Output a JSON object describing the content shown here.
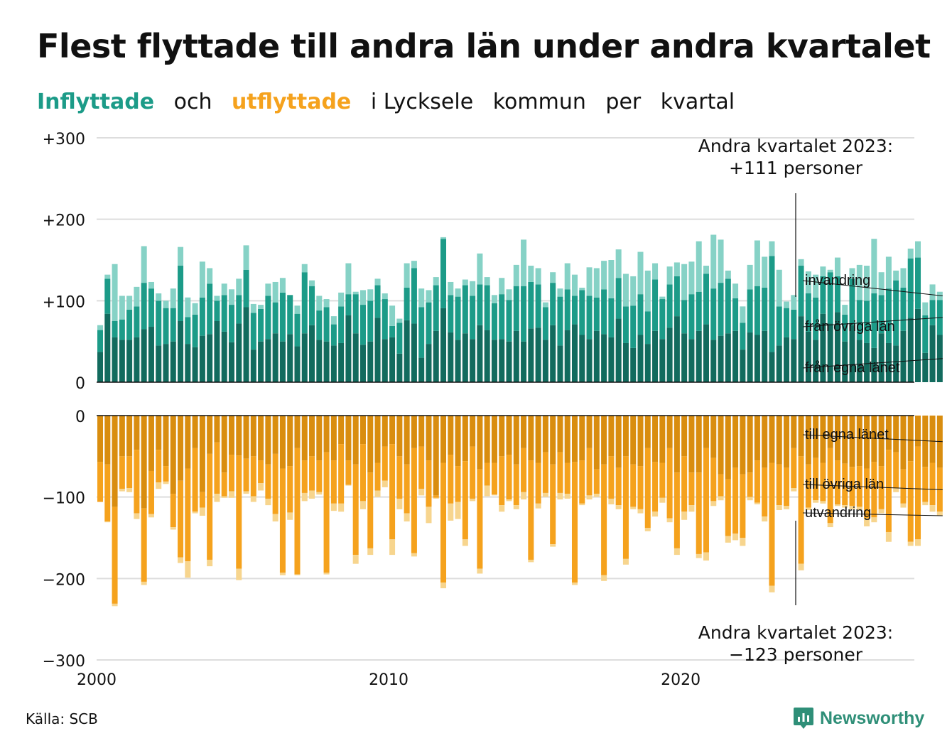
{
  "title": "Flest flyttade till andra län under andra kvartalet",
  "subtitle": {
    "part1": "Inflyttade",
    "part2": "och",
    "part3": "utflyttade",
    "part4": "i Lycksele",
    "part5": "kommun",
    "part6": "per",
    "part7": "kvartal"
  },
  "source": "Källa: SCB",
  "brand": "Newsworthy",
  "colors": {
    "in_own": "#126b5e",
    "in_other": "#1c9b88",
    "in_immig": "#86d2c6",
    "out_own": "#d98d0f",
    "out_other": "#f5a21d",
    "out_emig": "#f7d58e",
    "grid": "#dddddd",
    "brand": "#2f8f78"
  },
  "chart_data": {
    "type": "bar",
    "stacked": true,
    "x_unit": "quarter",
    "x_start": "2000 Q1",
    "xlim": [
      2000,
      2028
    ],
    "x_ticks": [
      "2000",
      "2010",
      "2020"
    ],
    "grid": true,
    "panels": [
      {
        "name": "in",
        "ylim": [
          0,
          300
        ],
        "y_ticks": [
          "0",
          "+100",
          "+200",
          "+300"
        ],
        "series": [
          {
            "name": "från egna länet",
            "values": [
              37,
              84,
              55,
              52,
              52,
              55,
              65,
              68,
              45,
              47,
              50,
              75,
              47,
              43,
              57,
              59,
              75,
              62,
              49,
              72,
              92,
              40,
              50,
              53,
              60,
              50,
              59,
              44,
              60,
              70,
              52,
              50,
              45,
              48,
              82,
              60,
              46,
              50,
              79,
              53,
              55,
              35,
              76,
              72,
              30,
              47,
              63,
              91,
              61,
              52,
              60,
              53,
              70,
              64,
              52,
              53,
              50,
              63,
              50,
              66,
              67,
              52,
              70,
              45,
              64,
              71,
              58,
              53,
              63,
              59,
              55,
              78,
              48,
              42,
              58,
              47,
              63,
              53,
              67,
              81,
              60,
              53,
              63,
              71,
              52,
              57,
              60,
              63,
              40,
              61,
              58,
              63,
              37,
              45,
              55,
              53,
              81,
              62,
              52,
              84,
              72,
              86,
              50,
              70,
              52,
              48,
              42,
              60,
              48,
              45,
              63,
              79,
              90,
              36,
              70,
              58
            ],
            "estimated": true
          },
          {
            "name": "från övriga län",
            "values": [
              27,
              43,
              20,
              25,
              37,
              38,
              57,
              47,
              55,
              44,
              41,
              68,
              33,
              40,
              47,
              62,
              25,
              45,
              46,
              35,
              46,
              45,
              40,
              53,
              38,
              60,
              48,
              40,
              75,
              48,
              36,
              42,
              26,
              45,
              26,
              48,
              49,
              50,
              40,
              49,
              14,
              38,
              40,
              68,
              62,
              51,
              56,
              85,
              46,
              53,
              59,
              53,
              50,
              55,
              45,
              55,
              51,
              55,
              68,
              57,
              53,
              40,
              52,
              60,
              50,
              35,
              55,
              53,
              41,
              55,
              48,
              50,
              45,
              52,
              50,
              40,
              63,
              49,
              53,
              49,
              41,
              55,
              48,
              62,
              63,
              65,
              67,
              40,
              33,
              53,
              60,
              53,
              118,
              48,
              36,
              36,
              62,
              47,
              52,
              46,
              63,
              44,
              33,
              57,
              49,
              52,
              67,
              47,
              67,
              80,
              53,
              73,
              63,
              46,
              31,
              43
            ],
            "estimated": true
          },
          {
            "name": "invandring",
            "values": [
              6,
              5,
              70,
              29,
              17,
              24,
              45,
              8,
              9,
              9,
              24,
              23,
              24,
              14,
              44,
              19,
              6,
              14,
              19,
              20,
              30,
              11,
              5,
              15,
              25,
              18,
              0,
              10,
              10,
              7,
              18,
              10,
              10,
              17,
              38,
              3,
              18,
              14,
              8,
              7,
              25,
              5,
              30,
              9,
              23,
              15,
              10,
              2,
              16,
              10,
              7,
              18,
              38,
              10,
              10,
              20,
              13,
              26,
              57,
              20,
              20,
              6,
              13,
              10,
              32,
              26,
              3,
              35,
              36,
              35,
              47,
              35,
              40,
              36,
              52,
              50,
              20,
              3,
              22,
              17,
              44,
              40,
              62,
              10,
              66,
              53,
              10,
              18,
              20,
              30,
              56,
              38,
              18,
              45,
              8,
              18,
              8,
              27,
              28,
              12,
              3,
              23,
              12,
              13,
              43,
              43,
              67,
              28,
              39,
              12,
              24,
              12,
              20,
              16,
              19,
              10
            ],
            "estimated": true
          }
        ]
      },
      {
        "name": "out",
        "ylim": [
          -300,
          0
        ],
        "y_ticks": [
          "0",
          "−100",
          "−200",
          "−300"
        ],
        "series": [
          {
            "name": "till egna länet",
            "values": [
              -57,
              -60,
              -112,
              -50,
              -50,
              -42,
              -114,
              -68,
              -42,
              -62,
              -96,
              -80,
              -65,
              -40,
              -94,
              -47,
              -33,
              -70,
              -48,
              -49,
              -53,
              -50,
              -55,
              -60,
              -47,
              -65,
              -62,
              -40,
              -55,
              -50,
              -55,
              -45,
              -55,
              -35,
              -55,
              -60,
              -35,
              -70,
              -58,
              -38,
              -35,
              -50,
              -60,
              -40,
              -38,
              -55,
              -98,
              -58,
              -48,
              -62,
              -56,
              -38,
              -66,
              -58,
              -58,
              -50,
              -48,
              -60,
              -40,
              -55,
              -58,
              -45,
              -60,
              -45,
              -58,
              -57,
              -55,
              -40,
              -66,
              -60,
              -50,
              -64,
              -50,
              -60,
              -62,
              -40,
              -57,
              -58,
              -40,
              -70,
              -50,
              -70,
              -70,
              -40,
              -52,
              -72,
              -78,
              -64,
              -72,
              -70,
              -55,
              -64,
              -58,
              -60,
              -64,
              -40,
              -50,
              -60,
              -52,
              -58,
              -40,
              -55,
              -59,
              -63,
              -62,
              -65,
              -57,
              -62,
              -42,
              -45,
              -66,
              -56,
              -38,
              -63,
              -58,
              -64
            ],
            "estimated": true
          },
          {
            "name": "till övriga län",
            "values": [
              -49,
              -70,
              -119,
              -40,
              -39,
              -78,
              -90,
              -53,
              -40,
              -19,
              -41,
              -94,
              -114,
              -78,
              -19,
              -130,
              -63,
              -29,
              -45,
              -139,
              -40,
              -49,
              -28,
              -42,
              -74,
              -128,
              -57,
              -155,
              -40,
              -42,
              -39,
              -148,
              -53,
              -73,
              -30,
              -111,
              -70,
              -93,
              -34,
              -42,
              -117,
              -52,
              -60,
              -129,
              -52,
              -57,
              -3,
              -147,
              -60,
              -44,
              -96,
              -64,
              -122,
              -28,
              -39,
              -60,
              -55,
              -50,
              -54,
              -122,
              -50,
              -50,
              -98,
              -50,
              -38,
              -148,
              -53,
              -58,
              -30,
              -136,
              -52,
              -46,
              -126,
              -52,
              -53,
              -98,
              -61,
              -43,
              -86,
              -93,
              -68,
              -40,
              -100,
              -128,
              -53,
              -27,
              -70,
              -81,
              -78,
              -30,
              -52,
              -60,
              -151,
              -50,
              -47,
              -49,
              -132,
              -53,
              -52,
              -47,
              -92,
              -54,
              -51,
              -48,
              -50,
              -61,
              -68,
              -53,
              -101,
              -44,
              -42,
              -99,
              -114,
              -43,
              -52,
              -54
            ],
            "estimated": true
          },
          {
            "name": "utvandring",
            "values": [
              0,
              -1,
              -3,
              -3,
              -5,
              -7,
              -4,
              -4,
              -8,
              -3,
              -3,
              -7,
              -20,
              -2,
              -10,
              -8,
              -10,
              -2,
              -8,
              -14,
              -3,
              -7,
              -9,
              -8,
              -9,
              -3,
              -9,
              -1,
              -10,
              -10,
              -3,
              -2,
              -9,
              -10,
              -1,
              -11,
              -10,
              -8,
              -8,
              -8,
              -19,
              -13,
              -10,
              -4,
              -8,
              -20,
              -1,
              -7,
              -21,
              -21,
              -8,
              -3,
              -6,
              -13,
              -1,
              -8,
              -2,
              -5,
              -9,
              -3,
              -6,
              -5,
              -3,
              -8,
              -6,
              -3,
              -2,
              -5,
              -4,
              -7,
              -7,
              -5,
              -7,
              -3,
              -5,
              -4,
              -6,
              -6,
              -5,
              -8,
              -10,
              -8,
              -5,
              -10,
              -6,
              -5,
              -8,
              -8,
              -10,
              -4,
              -2,
              -6,
              -8,
              -6,
              -4,
              -4,
              -8,
              -3,
              -3,
              -3,
              -5,
              -2,
              -3,
              -4,
              -4,
              -10,
              -6,
              -5,
              -12,
              -5,
              -5,
              -5,
              -8,
              -4,
              -8,
              -5
            ],
            "estimated": true
          }
        ]
      }
    ],
    "annotations": [
      {
        "panel": "in",
        "line1": "Andra kvartalet 2023:",
        "line2": "+111 personer"
      },
      {
        "panel": "out",
        "line1": "Andra kvartalet 2023:",
        "line2": "−123 personer"
      }
    ]
  }
}
